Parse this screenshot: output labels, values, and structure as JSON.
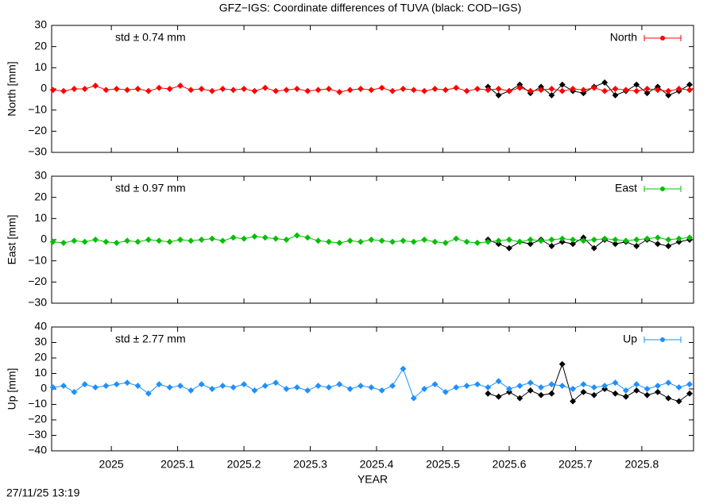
{
  "title": "GFZ−IGS: Coordinate differences of TUVA (black: COD−IGS)",
  "timestamp": "27/11/25 13:19",
  "chart_data": [
    {
      "type": "line",
      "ylabel": "North [mm]",
      "annotation": "std ± 0.74 mm",
      "annotation_color": "#ff0000",
      "legend": "top-right",
      "xlim": [
        2024.91,
        2025.878
      ],
      "ylim": [
        -30,
        30
      ],
      "xticks": [],
      "yticks": [
        {
          "value": -30,
          "label": "−30"
        },
        {
          "value": -20,
          "label": "−20"
        },
        {
          "value": -10,
          "label": "−10"
        },
        0,
        10,
        20,
        30
      ],
      "series": [
        {
          "name": null,
          "color": "#000000",
          "x": [
            2025.568,
            2025.584,
            2025.6,
            2025.616,
            2025.632,
            2025.648,
            2025.664,
            2025.68,
            2025.696,
            2025.712,
            2025.728,
            2025.744,
            2025.76,
            2025.776,
            2025.792,
            2025.808,
            2025.824,
            2025.84,
            2025.856,
            2025.872
          ],
          "values": [
            1,
            -3,
            -1,
            2,
            -2,
            1,
            -3,
            2,
            -1,
            -2,
            1,
            3,
            -3,
            -1,
            2,
            -2,
            1,
            -3,
            -1,
            2
          ]
        },
        {
          "name": "North",
          "color": "#ff0000",
          "x": [
            2024.912,
            2024.928,
            2024.944,
            2024.96,
            2024.976,
            2024.992,
            2025.008,
            2025.024,
            2025.04,
            2025.056,
            2025.072,
            2025.088,
            2025.104,
            2025.12,
            2025.136,
            2025.152,
            2025.168,
            2025.184,
            2025.2,
            2025.216,
            2025.232,
            2025.248,
            2025.264,
            2025.28,
            2025.296,
            2025.312,
            2025.328,
            2025.344,
            2025.36,
            2025.376,
            2025.392,
            2025.408,
            2025.424,
            2025.44,
            2025.456,
            2025.472,
            2025.488,
            2025.504,
            2025.52,
            2025.536,
            2025.552,
            2025.568,
            2025.584,
            2025.6,
            2025.616,
            2025.632,
            2025.648,
            2025.664,
            2025.68,
            2025.696,
            2025.712,
            2025.728,
            2025.744,
            2025.76,
            2025.776,
            2025.792,
            2025.808,
            2025.824,
            2025.84,
            2025.856,
            2025.872
          ],
          "values": [
            -0.5,
            -1,
            0,
            0,
            1.5,
            -0.5,
            0,
            -0.5,
            0,
            -1,
            0.5,
            0,
            1.5,
            -0.5,
            0,
            -1,
            0,
            -0.5,
            0,
            -1,
            0.5,
            -1,
            -0.5,
            0,
            -1,
            -0.5,
            0,
            -1.5,
            -0.5,
            0,
            -0.5,
            0.5,
            -1,
            0,
            -0.5,
            -1,
            0,
            -0.5,
            0.5,
            -1,
            0,
            -0.5,
            0,
            -1,
            0.5,
            -1,
            -0.5,
            0,
            -1,
            0,
            -0.5,
            0.5,
            -1,
            0,
            -0.5,
            -1,
            0,
            -0.5,
            -1,
            0,
            -0.5
          ]
        }
      ]
    },
    {
      "type": "line",
      "ylabel": "East [mm]",
      "annotation": "std ± 0.97 mm",
      "annotation_color": "#00c000",
      "legend": "top-right",
      "xlim": [
        2024.91,
        2025.878
      ],
      "ylim": [
        -30,
        30
      ],
      "xticks": [],
      "yticks": [
        {
          "value": -30,
          "label": "−30"
        },
        {
          "value": -20,
          "label": "−20"
        },
        {
          "value": -10,
          "label": "−10"
        },
        0,
        10,
        20,
        30
      ],
      "series": [
        {
          "name": null,
          "color": "#000000",
          "x": [
            2025.568,
            2025.584,
            2025.6,
            2025.616,
            2025.632,
            2025.648,
            2025.664,
            2025.68,
            2025.696,
            2025.712,
            2025.728,
            2025.744,
            2025.76,
            2025.776,
            2025.792,
            2025.808,
            2025.824,
            2025.84,
            2025.856,
            2025.872
          ],
          "values": [
            0,
            -2,
            -4,
            -1,
            -2,
            0,
            -3,
            -1,
            -2,
            1,
            -4,
            0,
            -2,
            -1,
            -3,
            0,
            -2,
            -3,
            -1,
            0
          ]
        },
        {
          "name": "East",
          "color": "#00c000",
          "x": [
            2024.912,
            2024.928,
            2024.944,
            2024.96,
            2024.976,
            2024.992,
            2025.008,
            2025.024,
            2025.04,
            2025.056,
            2025.072,
            2025.088,
            2025.104,
            2025.12,
            2025.136,
            2025.152,
            2025.168,
            2025.184,
            2025.2,
            2025.216,
            2025.232,
            2025.248,
            2025.264,
            2025.28,
            2025.296,
            2025.312,
            2025.328,
            2025.344,
            2025.36,
            2025.376,
            2025.392,
            2025.408,
            2025.424,
            2025.44,
            2025.456,
            2025.472,
            2025.488,
            2025.504,
            2025.52,
            2025.536,
            2025.552,
            2025.568,
            2025.584,
            2025.6,
            2025.616,
            2025.632,
            2025.648,
            2025.664,
            2025.68,
            2025.696,
            2025.712,
            2025.728,
            2025.744,
            2025.76,
            2025.776,
            2025.792,
            2025.808,
            2025.824,
            2025.84,
            2025.856,
            2025.872
          ],
          "values": [
            -1,
            -1.5,
            -0.5,
            -1,
            0,
            -1,
            -1.5,
            -0.5,
            -1,
            0,
            -0.5,
            -1,
            0,
            -0.5,
            0,
            0.5,
            -0.5,
            1,
            0.5,
            1.5,
            1,
            0.5,
            0,
            2,
            1,
            -0.5,
            -1,
            -1.5,
            -0.5,
            -1,
            0,
            -0.5,
            -1,
            -0.5,
            -1,
            0,
            -1,
            -1.5,
            0.5,
            -1,
            -1.5,
            -1,
            -0.5,
            0,
            -1,
            0,
            -0.5,
            0,
            0.5,
            0,
            -0.5,
            0,
            0.5,
            0,
            -0.5,
            0,
            0.5,
            1,
            0,
            0.5,
            1
          ]
        }
      ]
    },
    {
      "type": "line",
      "ylabel": "Up [mm]",
      "xlabel": "YEAR",
      "annotation": "std ± 2.77 mm",
      "annotation_color": "#1e90ff",
      "legend": "top-right",
      "xlim": [
        2024.91,
        2025.878
      ],
      "ylim": [
        -40,
        40
      ],
      "xticks": [
        2025,
        2025.1,
        2025.2,
        2025.3,
        2025.4,
        2025.5,
        2025.6,
        2025.7,
        2025.8
      ],
      "yticks": [
        {
          "value": -40,
          "label": "−40"
        },
        {
          "value": -30,
          "label": "−30"
        },
        {
          "value": -20,
          "label": "−20"
        },
        {
          "value": -10,
          "label": "−10"
        },
        0,
        10,
        20,
        30,
        40
      ],
      "series": [
        {
          "name": null,
          "color": "#000000",
          "x": [
            2025.568,
            2025.584,
            2025.6,
            2025.616,
            2025.632,
            2025.648,
            2025.664,
            2025.68,
            2025.696,
            2025.712,
            2025.728,
            2025.744,
            2025.76,
            2025.776,
            2025.792,
            2025.808,
            2025.824,
            2025.84,
            2025.856,
            2025.872
          ],
          "values": [
            -3,
            -5,
            -2,
            -6,
            -1,
            -4,
            -3,
            16,
            -8,
            -2,
            -4,
            0,
            -3,
            -5,
            -1,
            -4,
            -2,
            -6,
            -8,
            -3
          ]
        },
        {
          "name": "Up",
          "color": "#1e90ff",
          "x": [
            2024.912,
            2024.928,
            2024.944,
            2024.96,
            2024.976,
            2024.992,
            2025.008,
            2025.024,
            2025.04,
            2025.056,
            2025.072,
            2025.088,
            2025.104,
            2025.12,
            2025.136,
            2025.152,
            2025.168,
            2025.184,
            2025.2,
            2025.216,
            2025.232,
            2025.248,
            2025.264,
            2025.28,
            2025.296,
            2025.312,
            2025.328,
            2025.344,
            2025.36,
            2025.376,
            2025.392,
            2025.408,
            2025.424,
            2025.44,
            2025.456,
            2025.472,
            2025.488,
            2025.504,
            2025.52,
            2025.536,
            2025.552,
            2025.568,
            2025.584,
            2025.6,
            2025.616,
            2025.632,
            2025.648,
            2025.664,
            2025.68,
            2025.696,
            2025.712,
            2025.728,
            2025.744,
            2025.76,
            2025.776,
            2025.792,
            2025.808,
            2025.824,
            2025.84,
            2025.856,
            2025.872
          ],
          "values": [
            1,
            2,
            -2,
            3,
            1,
            2,
            3,
            4,
            2,
            -3,
            3,
            1,
            2,
            -1,
            3,
            0,
            2,
            1,
            3,
            -1,
            2,
            4,
            0,
            1,
            -1,
            2,
            1,
            3,
            0,
            2,
            1,
            -1,
            2,
            13,
            -6,
            0,
            3,
            -2,
            1,
            2,
            3,
            1,
            5,
            0,
            2,
            4,
            1,
            3,
            2,
            0,
            3,
            1,
            2,
            4,
            -1,
            3,
            0,
            2,
            4,
            1,
            3
          ]
        }
      ]
    }
  ]
}
